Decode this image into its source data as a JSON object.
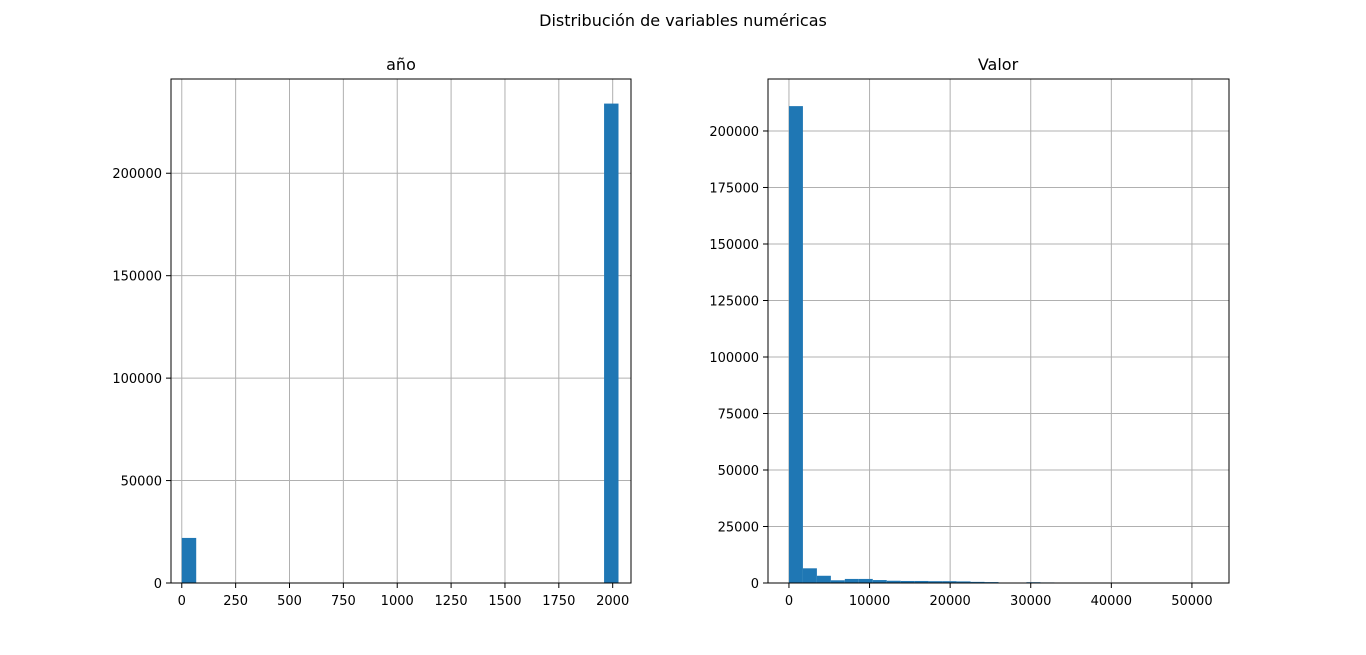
{
  "figure": {
    "title": "Distribución de variables numéricas"
  },
  "chart_data": [
    {
      "type": "bar",
      "title": "año",
      "grid": true,
      "xlim": [
        -50,
        2085
      ],
      "ylim": [
        0,
        246000
      ],
      "xticks": [
        0,
        250,
        500,
        750,
        1000,
        1250,
        1500,
        1750,
        2000
      ],
      "xtick_labels": [
        "0",
        "250",
        "500",
        "750",
        "1000",
        "1250",
        "1500",
        "1750",
        "2000"
      ],
      "yticks": [
        0,
        50000,
        100000,
        150000,
        200000
      ],
      "ytick_labels": [
        "0",
        "50000",
        "100000",
        "150000",
        "200000"
      ],
      "bars": [
        {
          "x0": 0,
          "x1": 67,
          "value": 22000
        },
        {
          "x0": 1960,
          "x1": 2027,
          "value": 234000
        }
      ],
      "color": "#1f77b4"
    },
    {
      "type": "bar",
      "title": "Valor",
      "grid": true,
      "xlim": [
        -2600,
        54600
      ],
      "ylim": [
        0,
        223000
      ],
      "xticks": [
        0,
        10000,
        20000,
        30000,
        40000,
        50000
      ],
      "xtick_labels": [
        "0",
        "10000",
        "20000",
        "30000",
        "40000",
        "50000"
      ],
      "yticks": [
        0,
        25000,
        50000,
        75000,
        100000,
        125000,
        150000,
        175000,
        200000
      ],
      "ytick_labels": [
        "0",
        "25000",
        "50000",
        "75000",
        "100000",
        "125000",
        "150000",
        "175000",
        "200000"
      ],
      "bars": [
        {
          "x0": 0,
          "x1": 1733,
          "value": 211000
        },
        {
          "x0": 1733,
          "x1": 3467,
          "value": 6500
        },
        {
          "x0": 3467,
          "x1": 5200,
          "value": 3200
        },
        {
          "x0": 5200,
          "x1": 6933,
          "value": 1200
        },
        {
          "x0": 6933,
          "x1": 8667,
          "value": 1800
        },
        {
          "x0": 8667,
          "x1": 10400,
          "value": 1800
        },
        {
          "x0": 10400,
          "x1": 12133,
          "value": 1300
        },
        {
          "x0": 12133,
          "x1": 13867,
          "value": 1000
        },
        {
          "x0": 13867,
          "x1": 15600,
          "value": 900
        },
        {
          "x0": 15600,
          "x1": 17333,
          "value": 900
        },
        {
          "x0": 17333,
          "x1": 19067,
          "value": 800
        },
        {
          "x0": 19067,
          "x1": 20800,
          "value": 800
        },
        {
          "x0": 20800,
          "x1": 22533,
          "value": 700
        },
        {
          "x0": 22533,
          "x1": 24267,
          "value": 500
        },
        {
          "x0": 24267,
          "x1": 26000,
          "value": 400
        },
        {
          "x0": 26000,
          "x1": 27733,
          "value": 150
        },
        {
          "x0": 27733,
          "x1": 29467,
          "value": 150
        },
        {
          "x0": 29467,
          "x1": 31200,
          "value": 350
        },
        {
          "x0": 31200,
          "x1": 32933,
          "value": 250
        },
        {
          "x0": 32933,
          "x1": 34667,
          "value": 80
        },
        {
          "x0": 34667,
          "x1": 36400,
          "value": 60
        },
        {
          "x0": 36400,
          "x1": 38133,
          "value": 50
        },
        {
          "x0": 38133,
          "x1": 39867,
          "value": 40
        },
        {
          "x0": 39867,
          "x1": 41600,
          "value": 40
        },
        {
          "x0": 41600,
          "x1": 43333,
          "value": 30
        },
        {
          "x0": 43333,
          "x1": 45067,
          "value": 20
        },
        {
          "x0": 45067,
          "x1": 46800,
          "value": 20
        },
        {
          "x0": 46800,
          "x1": 48533,
          "value": 15
        },
        {
          "x0": 48533,
          "x1": 50267,
          "value": 10
        },
        {
          "x0": 50267,
          "x1": 52000,
          "value": 10
        }
      ],
      "color": "#1f77b4"
    }
  ]
}
